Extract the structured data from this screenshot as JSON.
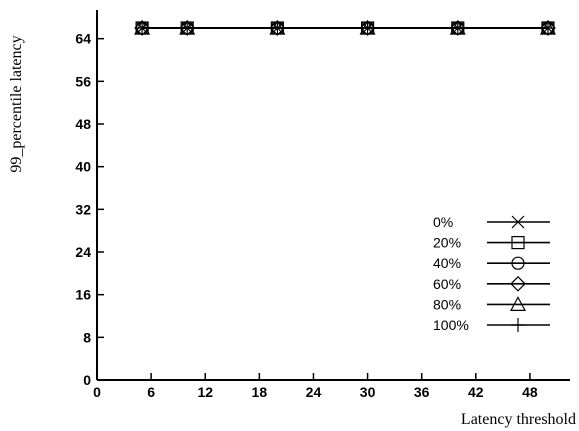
{
  "chart_data": {
    "type": "line",
    "title": "",
    "xlabel": "Latency threshold",
    "ylabel": "99_percentile latency",
    "xlim": [
      0,
      52
    ],
    "ylim": [
      0,
      69
    ],
    "x_ticks": [
      0,
      6,
      12,
      18,
      24,
      30,
      36,
      42,
      48
    ],
    "y_ticks": [
      0,
      8,
      16,
      24,
      32,
      40,
      48,
      56,
      64
    ],
    "grid": false,
    "legend_position": "right",
    "x": [
      5,
      10,
      20,
      30,
      40,
      50
    ],
    "series": [
      {
        "name": "0%",
        "marker": "x",
        "values": [
          66,
          66,
          66,
          66,
          66,
          66
        ]
      },
      {
        "name": "20%",
        "marker": "square",
        "values": [
          66,
          66,
          66,
          66,
          66,
          66
        ]
      },
      {
        "name": "40%",
        "marker": "circle",
        "values": [
          66,
          66,
          66,
          66,
          66,
          66
        ]
      },
      {
        "name": "60%",
        "marker": "diamond",
        "values": [
          66,
          66,
          66,
          66,
          66,
          66
        ]
      },
      {
        "name": "80%",
        "marker": "triangle",
        "values": [
          66,
          66,
          66,
          66,
          66,
          66
        ]
      },
      {
        "name": "100%",
        "marker": "plus",
        "values": [
          66,
          66,
          66,
          66,
          66,
          66
        ]
      }
    ]
  }
}
